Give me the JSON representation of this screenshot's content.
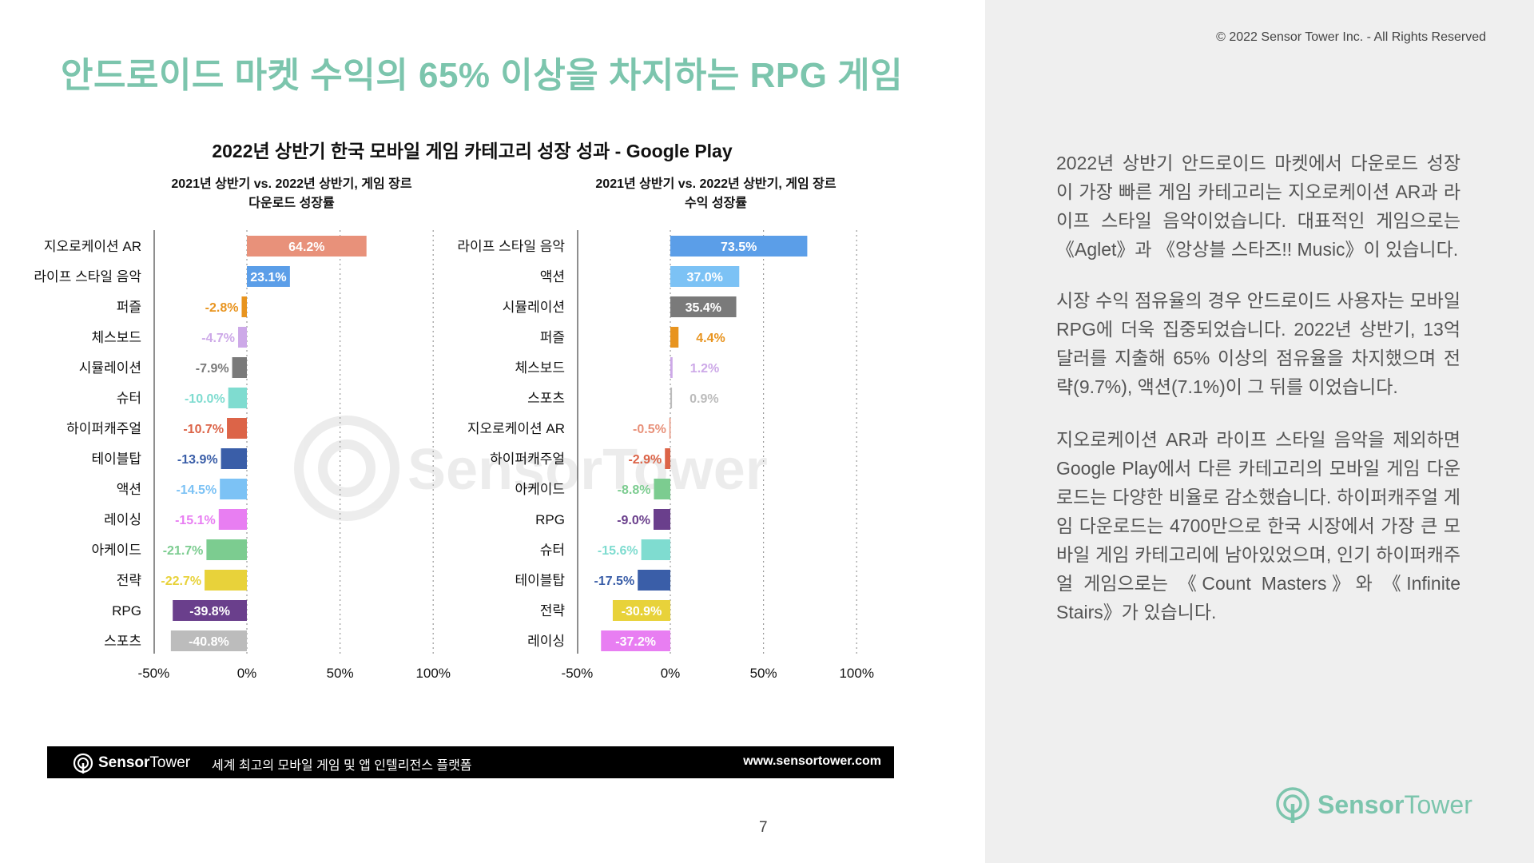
{
  "header": {
    "title": "안드로이드 마켓 수익의 65% 이상을 차지하는 RPG 게임",
    "copyright": "© 2022 Sensor Tower Inc. - All Rights Reserved"
  },
  "chart_title": "2022년 상반기 한국 모바일 게임 카테고리 성장 성과 - Google Play",
  "colors": {
    "accent": "#7cc5ad",
    "footer_bg": "#000000",
    "panel_bg": "#efefef"
  },
  "watermark": "SensorTower",
  "chart_data": [
    {
      "type": "bar",
      "orientation": "horizontal",
      "title_line1": "2021년 상반기 vs. 2022년 상반기, 게임 장르",
      "title_line2": "다운로드 성장률",
      "xlim": [
        -50,
        100
      ],
      "xticks": [
        -50,
        0,
        50,
        100
      ],
      "xtick_labels": [
        "-50%",
        "0%",
        "50%",
        "100%"
      ],
      "grid": "dotted vertical",
      "categories": [
        "지오로케이션 AR",
        "라이프 스타일 음악",
        "퍼즐",
        "체스보드",
        "시뮬레이션",
        "슈터",
        "하이퍼캐주얼",
        "테이블탑",
        "액션",
        "레이싱",
        "아케이드",
        "전략",
        "RPG",
        "스포츠"
      ],
      "values": [
        64.2,
        23.1,
        -2.8,
        -4.7,
        -7.9,
        -10.0,
        -10.7,
        -13.9,
        -14.5,
        -15.1,
        -21.7,
        -22.7,
        -39.8,
        -40.8
      ],
      "value_labels": [
        "64.2%",
        "23.1%",
        "-2.8%",
        "-4.7%",
        "-7.9%",
        "-10.0%",
        "-10.7%",
        "-13.9%",
        "-14.5%",
        "-15.1%",
        "-21.7%",
        "-22.7%",
        "-39.8%",
        "-40.8%"
      ],
      "colors": [
        "#e8917a",
        "#5b9ee8",
        "#e8941f",
        "#cda9e8",
        "#7a7a7a",
        "#7fdcd0",
        "#dc6448",
        "#3a5ea8",
        "#7cc2f5",
        "#e87ef2",
        "#7ccc90",
        "#e8d23a",
        "#6a3f8c",
        "#bcbcbc"
      ]
    },
    {
      "type": "bar",
      "orientation": "horizontal",
      "title_line1": "2021년 상반기 vs. 2022년 상반기, 게임 장르",
      "title_line2": "수익 성장률",
      "xlim": [
        -50,
        100
      ],
      "xticks": [
        -50,
        0,
        50,
        100
      ],
      "xtick_labels": [
        "-50%",
        "0%",
        "50%",
        "100%"
      ],
      "grid": "dotted vertical",
      "categories": [
        "라이프 스타일 음악",
        "액션",
        "시뮬레이션",
        "퍼즐",
        "체스보드",
        "스포츠",
        "지오로케이션 AR",
        "하이퍼캐주얼",
        "아케이드",
        "RPG",
        "슈터",
        "테이블탑",
        "전략",
        "레이싱"
      ],
      "values": [
        73.5,
        37.0,
        35.4,
        4.4,
        1.2,
        0.9,
        -0.5,
        -2.9,
        -8.8,
        -9.0,
        -15.6,
        -17.5,
        -30.9,
        -37.2
      ],
      "value_labels": [
        "73.5%",
        "37.0%",
        "35.4%",
        "4.4%",
        "1.2%",
        "0.9%",
        "-0.5%",
        "-2.9%",
        "-8.8%",
        "-9.0%",
        "-15.6%",
        "-17.5%",
        "-30.9%",
        "-37.2%"
      ],
      "colors": [
        "#5b9ee8",
        "#7cc2f5",
        "#7a7a7a",
        "#e8941f",
        "#cda9e8",
        "#bcbcbc",
        "#e8917a",
        "#dc6448",
        "#7ccc90",
        "#6a3f8c",
        "#7fdcd0",
        "#3a5ea8",
        "#e8d23a",
        "#e87ef2"
      ]
    }
  ],
  "right_panel": {
    "paragraph1": "2022년 상반기 안드로이드 마켓에서 다운로드 성장이 가장 빠른 게임 카테고리는 지오로케이션 AR과 라이프 스타일 음악이었습니다. 대표적인 게임으로는 《Aglet》과 《앙상블 스타즈!! Music》이 있습니다.",
    "paragraph2": "시장 수익 점유율의 경우 안드로이드 사용자는 모바일 RPG에 더욱 집중되었습니다. 2022년 상반기, 13억 달러를 지출해 65% 이상의 점유율을 차지했으며 전략(9.7%), 액션(7.1%)이 그 뒤를 이었습니다.",
    "paragraph3": "지오로케이션 AR과 라이프 스타일 음악을 제외하면 Google Play에서 다른 카테고리의 모바일 게임 다운로드는 다양한 비율로 감소했습니다. 하이퍼캐주얼 게임 다운로드는 4700만으로 한국 시장에서 가장 큰 모바일 게임 카테고리에 남아있었으며, 인기 하이퍼캐주얼 게임으로는 《Count Masters》와 《Infinite Stairs》가 있습니다."
  },
  "footer": {
    "logo_bold": "Sensor",
    "logo_light": "Tower",
    "tagline": "세계 최고의 모바일 게임 및 앱 인텔리전스 플랫폼",
    "url": "www.sensortower.com"
  },
  "page_number": "7",
  "brand_logo": {
    "bold": "Sensor",
    "light": "Tower"
  }
}
